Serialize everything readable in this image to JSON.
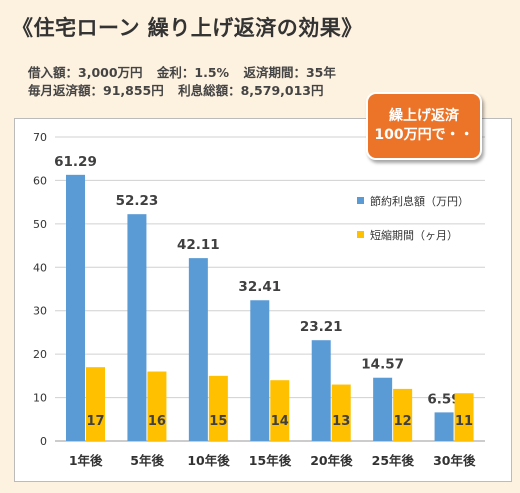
{
  "header": {
    "title": "《住宅ローン 繰り上げ返済の効果》",
    "info_line1": [
      "借入額：3,000万円",
      "金利：1.5%",
      "返済期間：35年"
    ],
    "info_line2": [
      "毎月返済額：91,855円",
      "利息総額：8,579,013円"
    ]
  },
  "callout": {
    "line1": "繰上げ返済",
    "line2": "100万円で・・"
  },
  "colors": {
    "savings": "#5b9bd5",
    "shortened": "#ffc000",
    "grid": "#d0d0d0",
    "callout": "#ec7428"
  },
  "chart_data": {
    "type": "bar",
    "categories": [
      "1年後",
      "5年後",
      "10年後",
      "15年後",
      "20年後",
      "25年後",
      "30年後"
    ],
    "series": [
      {
        "name": "節約利息額（万円）",
        "values": [
          61.29,
          52.23,
          42.11,
          32.41,
          23.21,
          14.57,
          6.59
        ]
      },
      {
        "name": "短縮期間（ヶ月）",
        "values": [
          17,
          16,
          15,
          14,
          13,
          12,
          11
        ]
      }
    ],
    "y_ticks": [
      0,
      10,
      20,
      30,
      40,
      50,
      60,
      70
    ],
    "ylim": [
      0,
      70
    ],
    "grid": true,
    "legend_position": "right",
    "title": "",
    "xlabel": "",
    "ylabel": ""
  }
}
